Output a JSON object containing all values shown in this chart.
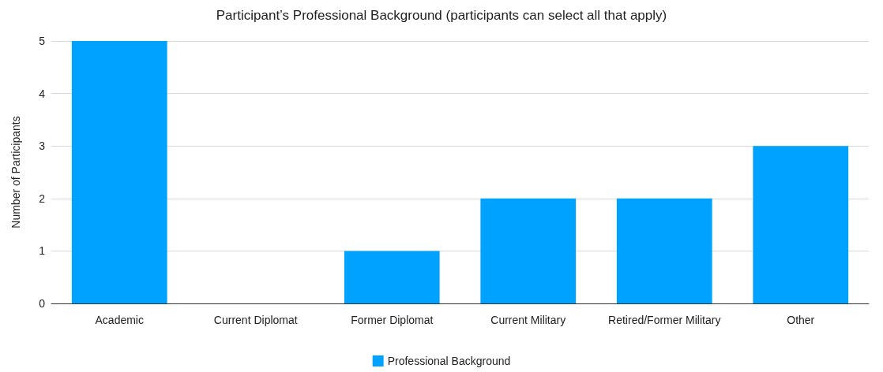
{
  "chart_data": {
    "type": "bar",
    "title": "Participant’s Professional Background (participants can select all that apply)",
    "ylabel": "Number of Participants",
    "categories": [
      "Academic",
      "Current Diplomat",
      "Former Diplomat",
      "Current Military",
      "Retired/Former Military",
      "Other"
    ],
    "series": [
      {
        "name": "Professional Background",
        "color": "#00a2ff",
        "values": [
          5,
          0,
          1,
          2,
          2,
          3
        ]
      }
    ],
    "ylim": [
      0,
      5
    ],
    "yticks": [
      0,
      1,
      2,
      3,
      4,
      5
    ],
    "grid": "y",
    "legend": "bottom"
  }
}
